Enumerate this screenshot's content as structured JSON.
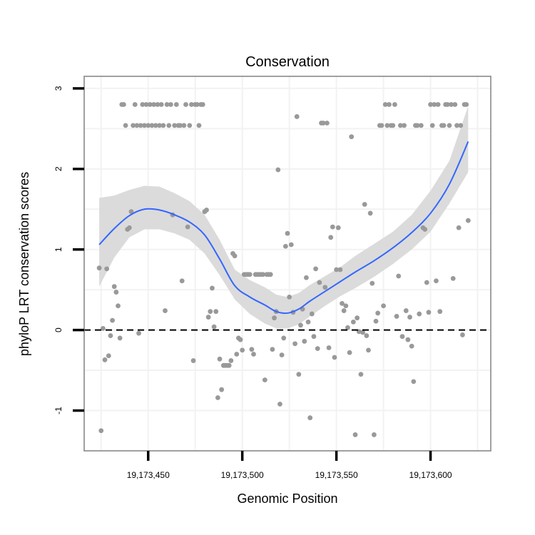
{
  "chart_data": {
    "type": "scatter",
    "title": "Conservation",
    "xlabel": "Genomic Position",
    "ylabel": "phyloP LRT conservation scores",
    "xlim": [
      19173416,
      19173632
    ],
    "ylim": [
      -1.5,
      3.15
    ],
    "x_ticks": [
      19173450,
      19173500,
      19173550,
      19173600
    ],
    "x_tick_labels": [
      "19,173,450",
      "19,173,500",
      "19,173,550",
      "19,173,600"
    ],
    "y_ticks": [
      -1,
      0,
      1,
      2,
      3
    ],
    "y_tick_labels": [
      "-1",
      "0",
      "1",
      "2",
      "3"
    ],
    "reference_line": {
      "y": 0,
      "style": "dashed"
    },
    "colors": {
      "points": "#999999",
      "smooth": "#3366ff",
      "ribbon": "#d9d9d9",
      "panel_border": "#888888",
      "grid": "#f2f2f2"
    },
    "series": [
      {
        "name": "observed",
        "points": [
          [
            19173424,
            0.77
          ],
          [
            19173425,
            -1.25
          ],
          [
            19173426,
            0.02
          ],
          [
            19173427,
            -0.37
          ],
          [
            19173428,
            0.76
          ],
          [
            19173429,
            -0.32
          ],
          [
            19173430,
            -0.07
          ],
          [
            19173431,
            0.12
          ],
          [
            19173432,
            0.54
          ],
          [
            19173433,
            0.47
          ],
          [
            19173434,
            0.3
          ],
          [
            19173435,
            -0.1
          ],
          [
            19173436,
            2.8
          ],
          [
            19173437,
            2.8
          ],
          [
            19173438,
            2.54
          ],
          [
            19173439,
            1.25
          ],
          [
            19173440,
            1.27
          ],
          [
            19173441,
            1.47
          ],
          [
            19173442,
            2.54
          ],
          [
            19173443,
            2.8
          ],
          [
            19173444,
            2.54
          ],
          [
            19173445,
            -0.04
          ],
          [
            19173446,
            2.54
          ],
          [
            19173447,
            2.8
          ],
          [
            19173448,
            2.54
          ],
          [
            19173449,
            2.8
          ],
          [
            19173450,
            2.54
          ],
          [
            19173451,
            2.8
          ],
          [
            19173452,
            2.54
          ],
          [
            19173453,
            2.8
          ],
          [
            19173454,
            2.54
          ],
          [
            19173455,
            2.8
          ],
          [
            19173456,
            2.54
          ],
          [
            19173457,
            2.8
          ],
          [
            19173458,
            2.54
          ],
          [
            19173459,
            0.24
          ],
          [
            19173460,
            2.8
          ],
          [
            19173461,
            2.54
          ],
          [
            19173462,
            2.8
          ],
          [
            19173463,
            1.43
          ],
          [
            19173464,
            2.54
          ],
          [
            19173465,
            2.8
          ],
          [
            19173466,
            2.54
          ],
          [
            19173467,
            2.54
          ],
          [
            19173468,
            0.61
          ],
          [
            19173469,
            2.54
          ],
          [
            19173470,
            2.8
          ],
          [
            19173471,
            1.28
          ],
          [
            19173472,
            2.54
          ],
          [
            19173473,
            2.8
          ],
          [
            19173474,
            -0.38
          ],
          [
            19173475,
            2.8
          ],
          [
            19173476,
            2.8
          ],
          [
            19173477,
            2.54
          ],
          [
            19173478,
            2.8
          ],
          [
            19173479,
            2.8
          ],
          [
            19173480,
            1.47
          ],
          [
            19173481,
            1.49
          ],
          [
            19173482,
            0.16
          ],
          [
            19173483,
            0.23
          ],
          [
            19173484,
            0.52
          ],
          [
            19173485,
            0.04
          ],
          [
            19173486,
            0.23
          ],
          [
            19173487,
            -0.84
          ],
          [
            19173488,
            -0.36
          ],
          [
            19173489,
            -0.74
          ],
          [
            19173490,
            -0.44
          ],
          [
            19173491,
            -0.44
          ],
          [
            19173492,
            -0.44
          ],
          [
            19173493,
            -0.44
          ],
          [
            19173494,
            -0.38
          ],
          [
            19173495,
            0.95
          ],
          [
            19173496,
            0.92
          ],
          [
            19173497,
            -0.3
          ],
          [
            19173498,
            -0.1
          ],
          [
            19173499,
            -0.12
          ],
          [
            19173500,
            -0.25
          ],
          [
            19173501,
            0.69
          ],
          [
            19173502,
            0.69
          ],
          [
            19173503,
            0.69
          ],
          [
            19173504,
            0.69
          ],
          [
            19173505,
            -0.24
          ],
          [
            19173506,
            -0.3
          ],
          [
            19173507,
            0.69
          ],
          [
            19173508,
            0.69
          ],
          [
            19173509,
            0.69
          ],
          [
            19173510,
            0.69
          ],
          [
            19173511,
            0.69
          ],
          [
            19173512,
            -0.62
          ],
          [
            19173513,
            0.69
          ],
          [
            19173514,
            0.69
          ],
          [
            19173515,
            0.69
          ],
          [
            19173516,
            -0.24
          ],
          [
            19173517,
            0.15
          ],
          [
            19173518,
            0.23
          ],
          [
            19173519,
            1.99
          ],
          [
            19173520,
            -0.92
          ],
          [
            19173521,
            -0.31
          ],
          [
            19173522,
            -0.1
          ],
          [
            19173523,
            1.04
          ],
          [
            19173524,
            1.2
          ],
          [
            19173525,
            0.41
          ],
          [
            19173526,
            1.06
          ],
          [
            19173527,
            0.22
          ],
          [
            19173528,
            -0.17
          ],
          [
            19173529,
            2.65
          ],
          [
            19173530,
            -0.55
          ],
          [
            19173531,
            0.06
          ],
          [
            19173532,
            0.26
          ],
          [
            19173533,
            -0.14
          ],
          [
            19173534,
            0.65
          ],
          [
            19173535,
            0.1
          ],
          [
            19173536,
            -1.09
          ],
          [
            19173537,
            0.2
          ],
          [
            19173538,
            -0.08
          ],
          [
            19173539,
            0.76
          ],
          [
            19173540,
            -0.23
          ],
          [
            19173541,
            0.59
          ],
          [
            19173542,
            2.57
          ],
          [
            19173543,
            2.57
          ],
          [
            19173544,
            0.53
          ],
          [
            19173545,
            2.57
          ],
          [
            19173546,
            -0.22
          ],
          [
            19173547,
            1.15
          ],
          [
            19173548,
            1.28
          ],
          [
            19173549,
            -0.34
          ],
          [
            19173550,
            0.75
          ],
          [
            19173551,
            1.27
          ],
          [
            19173552,
            0.75
          ],
          [
            19173553,
            0.33
          ],
          [
            19173554,
            0.24
          ],
          [
            19173555,
            0.3
          ],
          [
            19173556,
            0.03
          ],
          [
            19173557,
            -0.28
          ],
          [
            19173558,
            2.4
          ],
          [
            19173559,
            0.1
          ],
          [
            19173560,
            -1.3
          ],
          [
            19173561,
            0.15
          ],
          [
            19173562,
            -0.02
          ],
          [
            19173563,
            -0.55
          ],
          [
            19173564,
            -0.03
          ],
          [
            19173565,
            1.56
          ],
          [
            19173566,
            -0.07
          ],
          [
            19173567,
            -0.25
          ],
          [
            19173568,
            1.45
          ],
          [
            19173569,
            0.58
          ],
          [
            19173570,
            -1.3
          ],
          [
            19173571,
            0.11
          ],
          [
            19173572,
            0.21
          ],
          [
            19173573,
            2.54
          ],
          [
            19173574,
            2.54
          ],
          [
            19173575,
            0.3
          ],
          [
            19173576,
            2.8
          ],
          [
            19173577,
            2.54
          ],
          [
            19173578,
            2.8
          ],
          [
            19173579,
            2.54
          ],
          [
            19173580,
            2.54
          ],
          [
            19173581,
            2.8
          ],
          [
            19173582,
            0.17
          ],
          [
            19173583,
            0.67
          ],
          [
            19173584,
            2.54
          ],
          [
            19173585,
            -0.08
          ],
          [
            19173586,
            2.54
          ],
          [
            19173587,
            0.24
          ],
          [
            19173588,
            -0.12
          ],
          [
            19173589,
            0.16
          ],
          [
            19173590,
            -0.2
          ],
          [
            19173591,
            -0.64
          ],
          [
            19173592,
            2.54
          ],
          [
            19173593,
            2.54
          ],
          [
            19173594,
            0.2
          ],
          [
            19173595,
            2.54
          ],
          [
            19173596,
            1.27
          ],
          [
            19173597,
            1.25
          ],
          [
            19173598,
            0.59
          ],
          [
            19173599,
            0.22
          ],
          [
            19173600,
            2.8
          ],
          [
            19173601,
            2.54
          ],
          [
            19173602,
            2.8
          ],
          [
            19173603,
            0.61
          ],
          [
            19173604,
            2.8
          ],
          [
            19173605,
            0.23
          ],
          [
            19173606,
            2.54
          ],
          [
            19173607,
            2.54
          ],
          [
            19173608,
            2.8
          ],
          [
            19173609,
            2.8
          ],
          [
            19173610,
            2.54
          ],
          [
            19173611,
            2.8
          ],
          [
            19173612,
            0.64
          ],
          [
            19173613,
            2.8
          ],
          [
            19173614,
            2.54
          ],
          [
            19173615,
            1.27
          ],
          [
            19173616,
            2.54
          ],
          [
            19173617,
            -0.06
          ],
          [
            19173618,
            2.8
          ],
          [
            19173619,
            2.8
          ],
          [
            19173620,
            1.36
          ]
        ]
      },
      {
        "name": "loess fit",
        "x": [
          19173424,
          19173432,
          19173440,
          19173448,
          19173456,
          19173464,
          19173472,
          19173480,
          19173488,
          19173496,
          19173504,
          19173512,
          19173518,
          19173524,
          19173530,
          19173536,
          19173544,
          19173552,
          19173560,
          19173570,
          19173580,
          19173590,
          19173600,
          19173610,
          19173620
        ],
        "y": [
          1.06,
          1.26,
          1.42,
          1.5,
          1.49,
          1.43,
          1.34,
          1.18,
          0.88,
          0.55,
          0.41,
          0.31,
          0.23,
          0.21,
          0.26,
          0.36,
          0.48,
          0.6,
          0.72,
          0.86,
          1.02,
          1.21,
          1.45,
          1.81,
          2.34
        ],
        "ribbon_lower": [
          0.54,
          0.9,
          1.15,
          1.25,
          1.25,
          1.2,
          1.12,
          0.95,
          0.68,
          0.38,
          0.2,
          0.08,
          0.02,
          0.02,
          0.07,
          0.17,
          0.3,
          0.42,
          0.52,
          0.66,
          0.82,
          1.0,
          1.22,
          1.57,
          1.96
        ],
        "ribbon_upper": [
          1.64,
          1.67,
          1.74,
          1.79,
          1.78,
          1.7,
          1.6,
          1.43,
          1.12,
          0.75,
          0.62,
          0.53,
          0.44,
          0.41,
          0.46,
          0.56,
          0.67,
          0.78,
          0.92,
          1.07,
          1.22,
          1.43,
          1.73,
          2.1,
          2.78
        ]
      }
    ]
  }
}
